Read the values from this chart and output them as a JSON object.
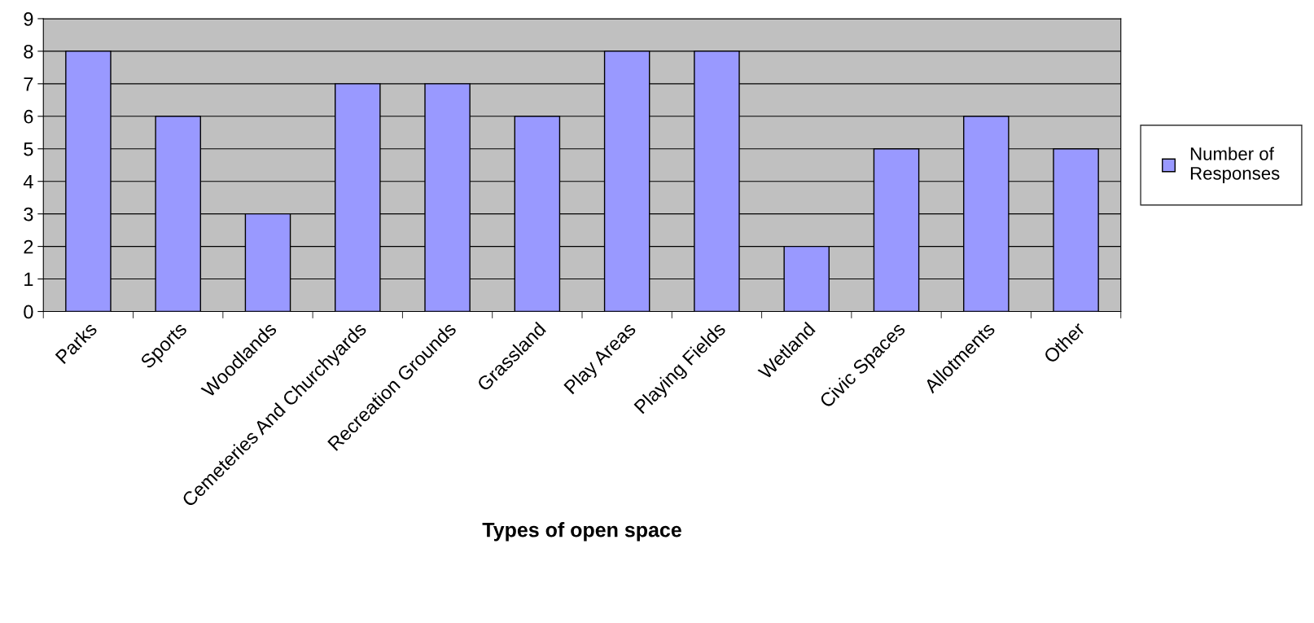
{
  "chart_data": {
    "type": "bar",
    "xlabel": "Types of open space",
    "categories": [
      "Parks",
      "Sports",
      "Woodlands",
      "Cemeteries And Churchyards",
      "Recreation Grounds",
      "Grassland",
      "Play Areas",
      "Playing Fields",
      "Wetland",
      "Civic Spaces",
      "Allotments",
      "Other"
    ],
    "series": [
      {
        "name": "Number of Responses",
        "color": "#9999ff",
        "values": [
          8,
          6,
          3,
          7,
          7,
          6,
          8,
          8,
          2,
          5,
          6,
          5
        ]
      }
    ],
    "ylim": [
      0,
      9
    ],
    "yticks": [
      0,
      1,
      2,
      3,
      4,
      5,
      6,
      7,
      8,
      9
    ],
    "grid": "y",
    "legend": "right"
  }
}
